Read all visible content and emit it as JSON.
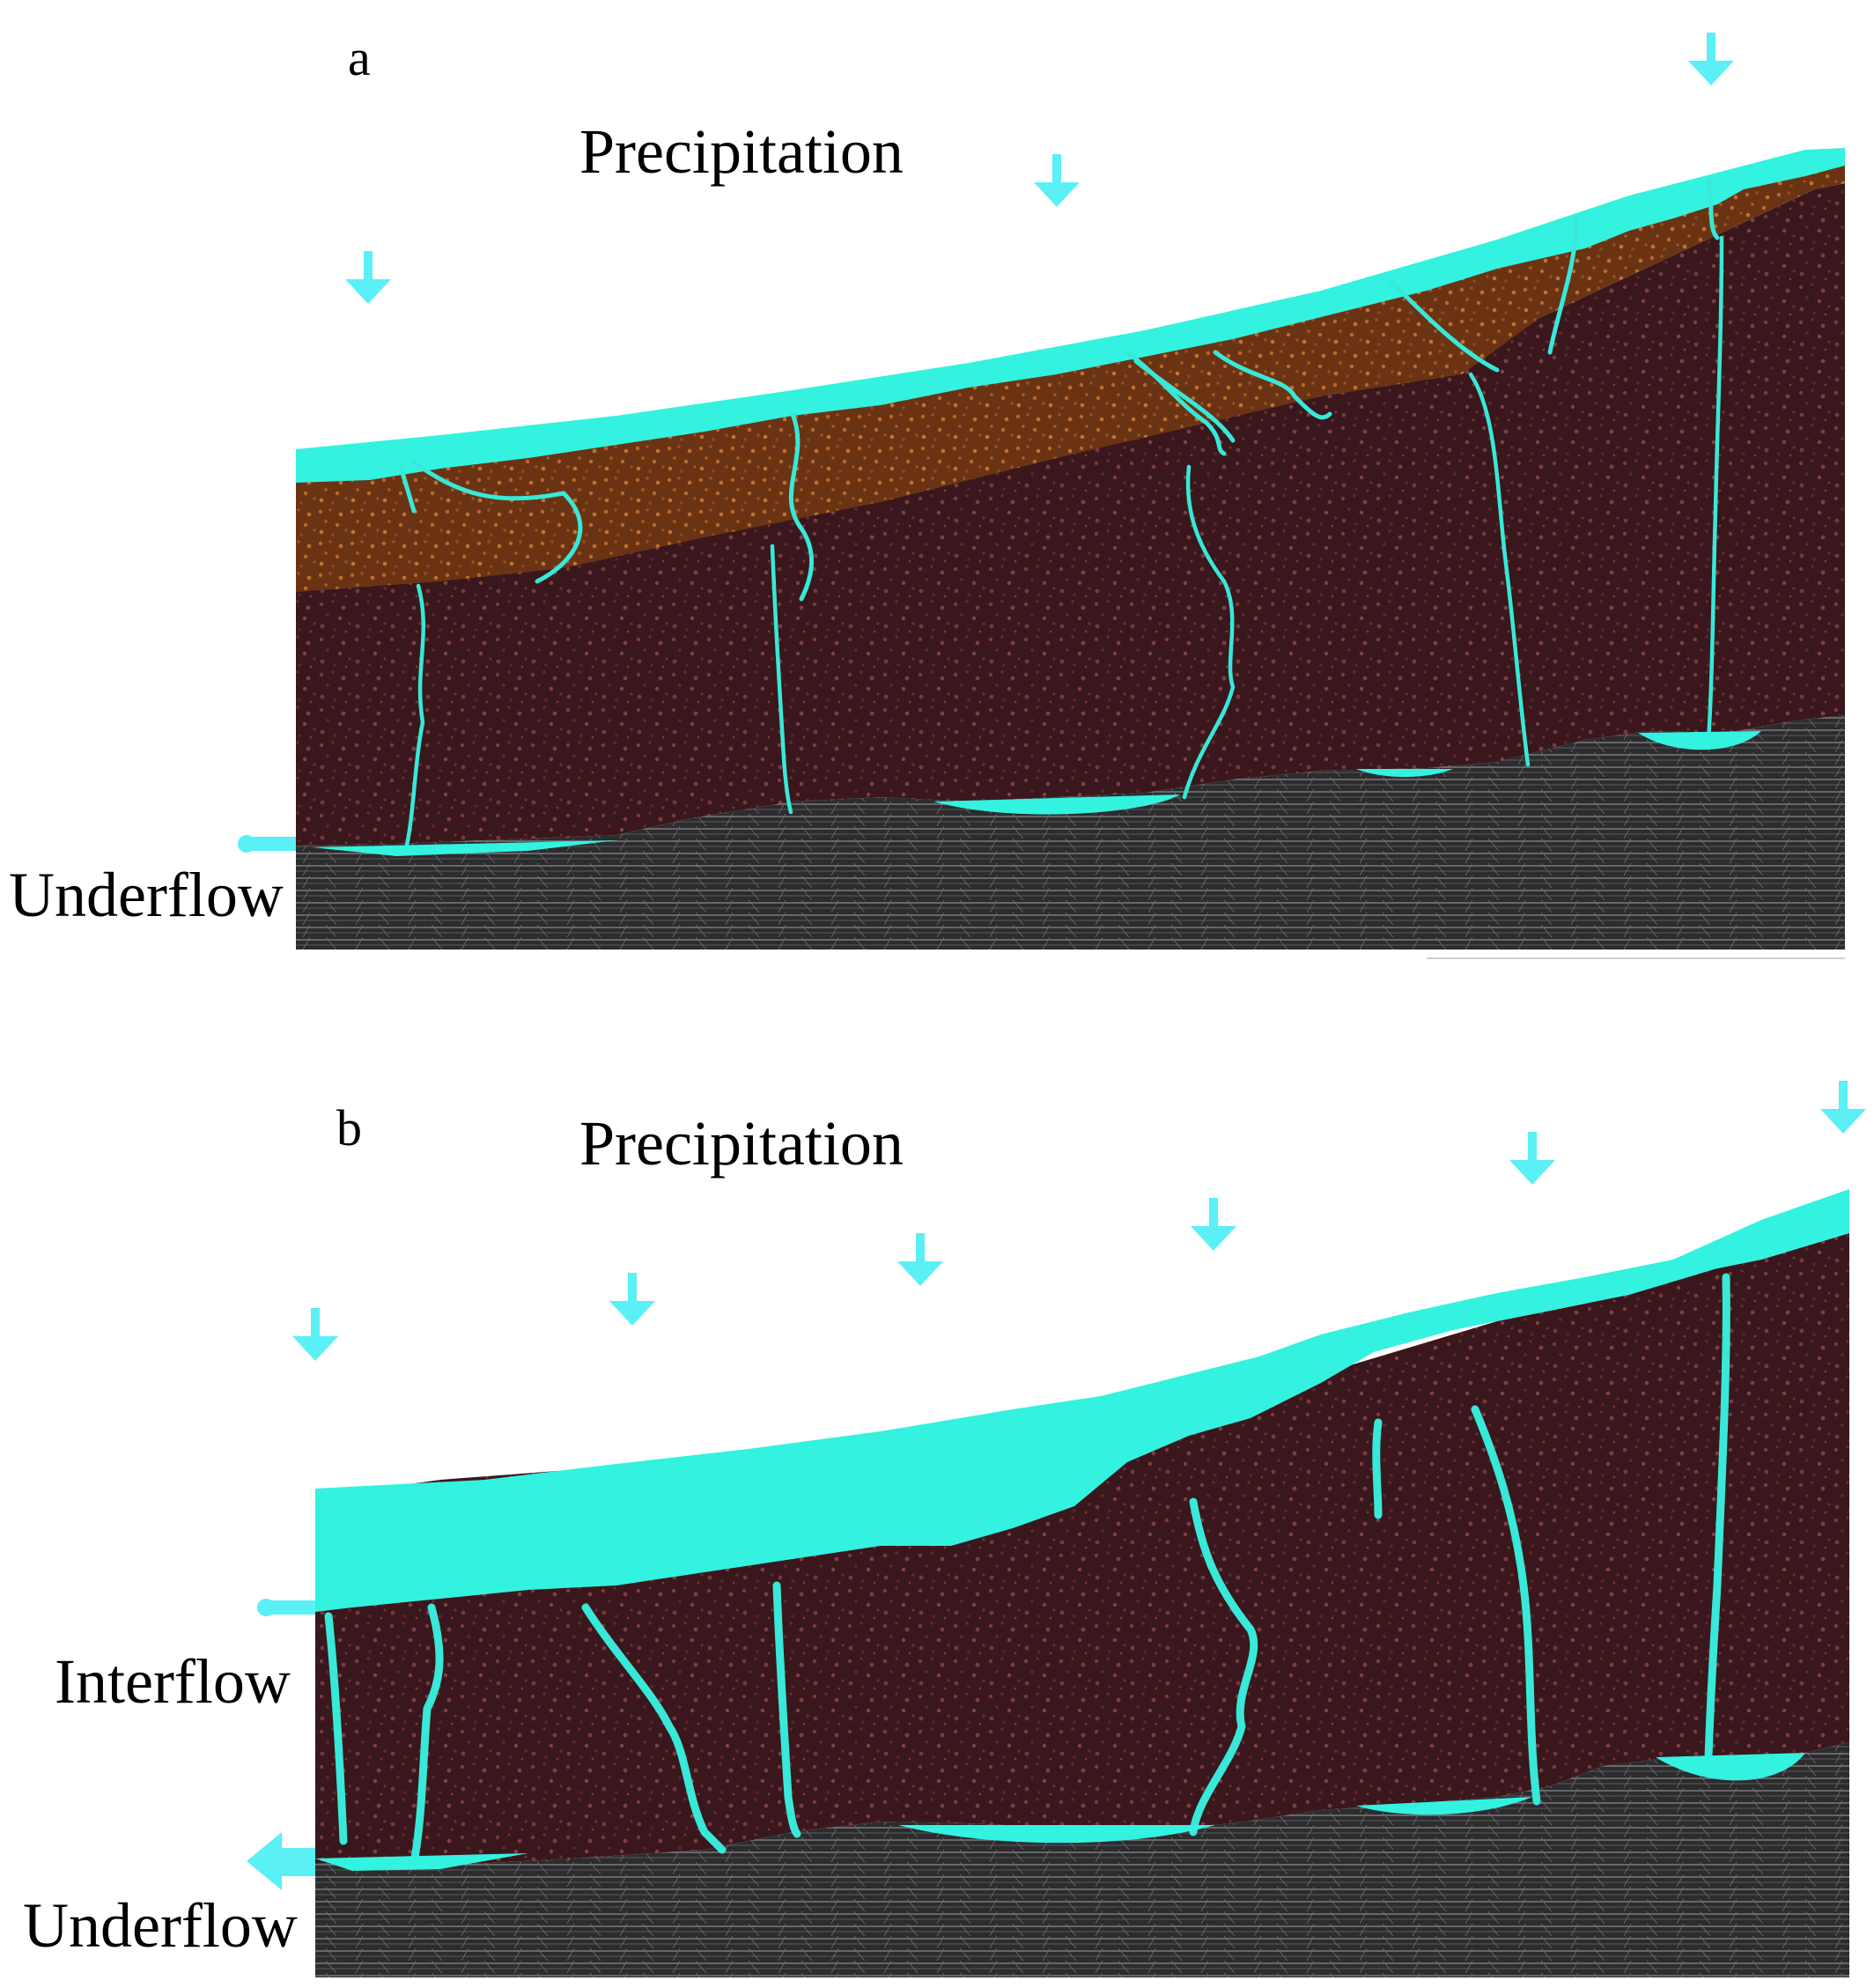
{
  "panels": [
    {
      "letter": "a",
      "precipitation_label": "Precipitation",
      "outflow_labels": [
        "Underflow"
      ]
    },
    {
      "letter": "b",
      "precipitation_label": "Precipitation",
      "outflow_labels": [
        "Interflow",
        "Underflow"
      ]
    }
  ],
  "colors": {
    "water": "#33F2E0",
    "arrow": "#5AF0F5",
    "soil_brown": "#8A4A1E",
    "rock_dark": "#3A1A1E",
    "bedrock": "#2E2E30"
  }
}
